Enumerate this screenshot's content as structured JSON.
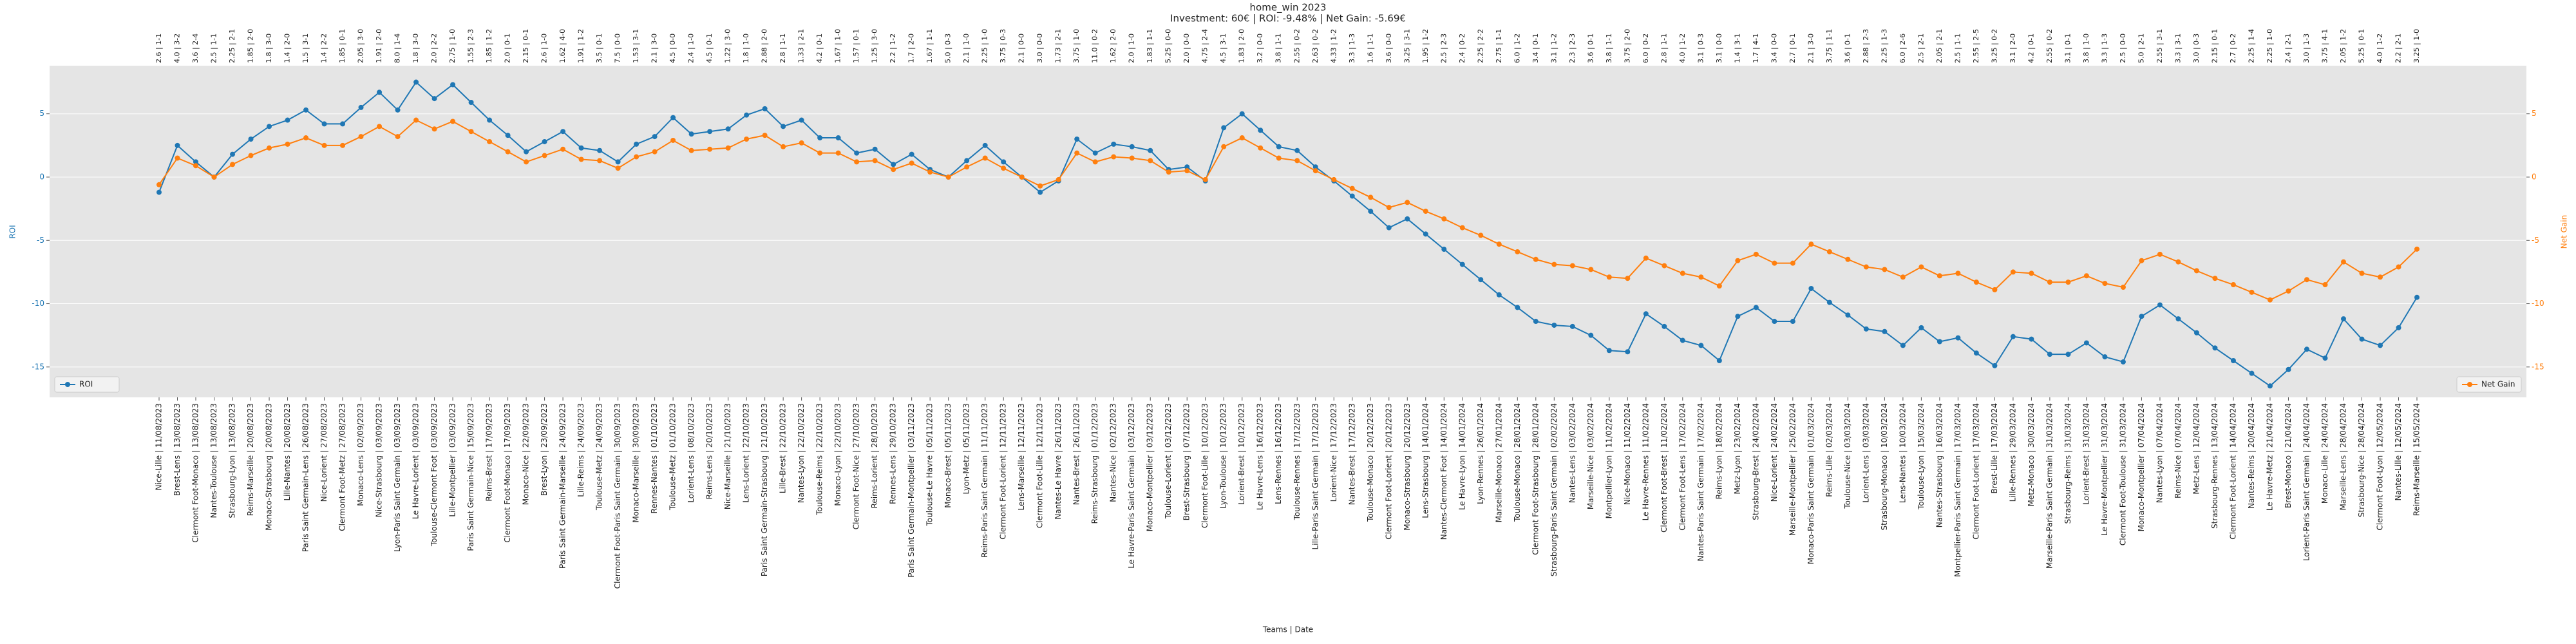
{
  "chart_data": {
    "type": "line",
    "title": "home_win 2023",
    "subtitle": "Investment: 60€ | ROI: -9.48% | Net Gain: -5.69€",
    "xlabel": "Teams | Date",
    "ylabel": "ROI",
    "y2label": "Net Gain",
    "ylim": [
      -17.4,
      8.8
    ],
    "yticks": [
      -15,
      -10,
      -5,
      0,
      5
    ],
    "y2lim": [
      -17.4,
      8.8
    ],
    "y2ticks": [
      -15,
      -10,
      -5,
      0,
      5
    ],
    "grid": true,
    "categories": [
      "Nice-Lille | 11/08/2023",
      "Brest-Lens | 13/08/2023",
      "Clermont Foot-Monaco | 13/08/2023",
      "Nantes-Toulouse | 13/08/2023",
      "Strasbourg-Lyon | 13/08/2023",
      "Reims-Marseille | 20/08/2023",
      "Monaco-Strasbourg | 20/08/2023",
      "Lille-Nantes | 20/08/2023",
      "Paris Saint Germain-Lens | 26/08/2023",
      "Nice-Lorient | 27/08/2023",
      "Clermont Foot-Metz | 27/08/2023",
      "Monaco-Lens | 02/09/2023",
      "Nice-Strasbourg | 03/09/2023",
      "Lyon-Paris Saint Germain | 03/09/2023",
      "Le Havre-Lorient | 03/09/2023",
      "Toulouse-Clermont Foot | 03/09/2023",
      "Lille-Montpellier | 03/09/2023",
      "Paris Saint Germain-Nice | 15/09/2023",
      "Reims-Brest | 17/09/2023",
      "Clermont Foot-Monaco | 17/09/2023",
      "Monaco-Nice | 22/09/2023",
      "Brest-Lyon | 23/09/2023",
      "Paris Saint Germain-Marseille | 24/09/2023",
      "Lille-Reims | 24/09/2023",
      "Toulouse-Metz | 24/09/2023",
      "Clermont Foot-Paris Saint Germain | 30/09/2023",
      "Monaco-Marseille | 30/09/2023",
      "Rennes-Nantes | 01/10/2023",
      "Toulouse-Metz | 01/10/2023",
      "Lorient-Lens | 08/10/2023",
      "Reims-Lens | 20/10/2023",
      "Nice-Marseille | 21/10/2023",
      "Lens-Lorient | 22/10/2023",
      "Paris Saint Germain-Strasbourg | 21/10/2023",
      "Lille-Brest | 22/10/2023",
      "Nantes-Lyon | 22/10/2023",
      "Toulouse-Reims | 22/10/2023",
      "Monaco-Lyon | 22/10/2023",
      "Clermont Foot-Nice | 27/10/2023",
      "Reims-Lorient | 28/10/2023",
      "Rennes-Lens | 29/10/2023",
      "Paris Saint Germain-Montpellier | 03/11/2023",
      "Toulouse-Le Havre | 05/11/2023",
      "Monaco-Brest | 05/11/2023",
      "Lyon-Metz | 05/11/2023",
      "Reims-Paris Saint Germain | 11/11/2023",
      "Clermont Foot-Lorient | 12/11/2023",
      "Lens-Marseille | 12/11/2023",
      "Clermont Foot-Lille | 12/11/2023",
      "Nantes-Le Havre | 26/11/2023",
      "Nantes-Brest | 26/11/2023",
      "Reims-Strasbourg | 01/12/2023",
      "Nantes-Nice | 02/12/2023",
      "Le Havre-Paris Saint Germain | 03/12/2023",
      "Monaco-Montpellier | 03/12/2023",
      "Toulouse-Lorient | 03/12/2023",
      "Brest-Strasbourg | 07/12/2023",
      "Clermont Foot-Lille | 10/12/2023",
      "Lyon-Toulouse | 10/12/2023",
      "Lorient-Brest | 10/12/2023",
      "Le Havre-Lens | 16/12/2023",
      "Lens-Rennes | 16/12/2023",
      "Toulouse-Rennes | 17/12/2023",
      "Lille-Paris Saint Germain | 17/12/2023",
      "Lorient-Nice | 17/12/2023",
      "Nantes-Brest | 17/12/2023",
      "Toulouse-Monaco | 20/12/2023",
      "Clermont Foot-Lorient | 20/12/2023",
      "Monaco-Strasbourg | 20/12/2023",
      "Lens-Strasbourg | 14/01/2024",
      "Nantes-Clermont Foot | 14/01/2024",
      "Le Havre-Lyon | 14/01/2024",
      "Lyon-Rennes | 26/01/2024",
      "Marseille-Monaco | 27/01/2024",
      "Toulouse-Monaco | 28/01/2024",
      "Clermont Foot-Strasbourg | 28/01/2024",
      "Strasbourg-Paris Saint Germain | 02/02/2024",
      "Nantes-Lens | 03/02/2024",
      "Marseille-Nice | 03/02/2024",
      "Montpellier-Lyon | 11/02/2024",
      "Nice-Monaco | 11/02/2024",
      "Le Havre-Rennes | 11/02/2024",
      "Clermont Foot-Brest | 11/02/2024",
      "Clermont Foot-Lens | 17/02/2024",
      "Nantes-Paris Saint Germain | 17/02/2024",
      "Reims-Lyon | 18/02/2024",
      "Metz-Lyon | 23/02/2024",
      "Strasbourg-Brest | 24/02/2024",
      "Nice-Lorient | 24/02/2024",
      "Marseille-Montpellier | 25/02/2024",
      "Monaco-Paris Saint Germain | 01/03/2024",
      "Reims-Lille | 02/03/2024",
      "Toulouse-Nice | 03/03/2024",
      "Lorient-Lens | 03/03/2024",
      "Strasbourg-Monaco | 10/03/2024",
      "Lens-Nantes | 10/03/2024",
      "Toulouse-Lyon | 15/03/2024",
      "Nantes-Strasbourg | 16/03/2024",
      "Montpellier-Paris Saint Germain | 17/03/2024",
      "Clermont Foot-Lorient | 17/03/2024",
      "Brest-Lille | 17/03/2024",
      "Lille-Rennes | 29/03/2024",
      "Metz-Monaco | 30/03/2024",
      "Marseille-Paris Saint Germain | 31/03/2024",
      "Strasbourg-Reims | 31/03/2024",
      "Lorient-Brest | 31/03/2024",
      "Le Havre-Montpellier | 31/03/2024",
      "Clermont Foot-Toulouse | 31/03/2024",
      "Monaco-Montpellier | 07/04/2024",
      "Nantes-Lyon | 07/04/2024",
      "Reims-Nice | 07/04/2024",
      "Metz-Lens | 12/04/2024",
      "Strasbourg-Rennes | 13/04/2024",
      "Clermont Foot-Lorient | 14/04/2024",
      "Nantes-Reims | 20/04/2024",
      "Le Havre-Metz | 21/04/2024",
      "Brest-Monaco | 21/04/2024",
      "Lorient-Paris Saint Germain | 24/04/2024",
      "Monaco-Lille | 24/04/2024",
      "Marseille-Lens | 28/04/2024",
      "Strasbourg-Nice | 28/04/2024",
      "Clermont Foot-Lyon | 12/05/2024",
      "Nantes-Lille | 12/05/2024",
      "Reims-Marseille | 15/05/2024"
    ],
    "point_labels": [
      "2.6 | 1-1",
      "4.0 | 3-2",
      "3.6 | 2-4",
      "2.5 | 1-1",
      "2.25 | 2-1",
      "1.85 | 2-0",
      "1.8 | 3-0",
      "1.4 | 2-0",
      "1.5 | 3-1",
      "1.4 | 2-2",
      "1.85 | 0-1",
      "2.05 | 3-0",
      "1.91 | 2-0",
      "8.0 | 1-4",
      "1.8 | 3-0",
      "2.0 | 2-2",
      "2.75 | 1-0",
      "1.55 | 2-3",
      "1.85 | 1-2",
      "2.0 | 0-1",
      "2.15 | 0-1",
      "2.6 | 1-0",
      "1.62 | 4-0",
      "1.91 | 1-2",
      "3.5 | 0-1",
      "7.5 | 0-0",
      "1.53 | 3-1",
      "2.1 | 3-0",
      "4.5 | 0-0",
      "2.4 | 1-0",
      "4.5 | 0-1",
      "1.22 | 3-0",
      "1.8 | 1-0",
      "2.88 | 2-0",
      "2.8 | 1-1",
      "1.33 | 2-1",
      "4.2 | 0-1",
      "1.67 | 1-0",
      "1.57 | 0-1",
      "1.25 | 3-0",
      "2.2 | 1-2",
      "1.7 | 2-0",
      "1.67 | 1-1",
      "5.0 | 0-3",
      "2.1 | 1-0",
      "2.25 | 1-0",
      "3.75 | 0-3",
      "2.1 | 0-0",
      "3.0 | 0-0",
      "1.73 | 2-1",
      "3.75 | 1-0",
      "11.0 | 0-2",
      "1.62 | 2-0",
      "2.0 | 1-0",
      "1.83 | 1-1",
      "5.25 | 0-0",
      "2.0 | 0-0",
      "4.75 | 2-4",
      "4.5 | 3-1",
      "1.83 | 2-0",
      "3.2 | 0-0",
      "3.8 | 1-1",
      "2.55 | 0-2",
      "2.63 | 0-2",
      "4.33 | 1-2",
      "3.3 | 1-3",
      "1.6 | 1-1",
      "3.6 | 0-0",
      "3.25 | 3-1",
      "1.95 | 1-2",
      "2.5 | 2-3",
      "2.4 | 0-2",
      "2.25 | 2-2",
      "2.75 | 1-1",
      "6.0 | 1-2",
      "3.4 | 0-1",
      "3.1 | 1-2",
      "2.3 | 2-3",
      "3.6 | 0-1",
      "3.8 | 1-1",
      "3.75 | 2-0",
      "6.0 | 0-2",
      "2.8 | 1-1",
      "4.0 | 1-2",
      "3.1 | 0-3",
      "3.1 | 0-0",
      "1.4 | 3-1",
      "1.7 | 4-1",
      "3.4 | 0-0",
      "2.7 | 0-1",
      "2.1 | 3-0",
      "3.75 | 1-1",
      "3.6 | 0-1",
      "2.88 | 2-3",
      "2.25 | 1-3",
      "6.0 | 2-6",
      "2.5 | 2-1",
      "2.05 | 2-1",
      "2.5 | 1-1",
      "2.55 | 2-5",
      "3.25 | 0-2",
      "3.1 | 2-0",
      "4.2 | 0-1",
      "2.55 | 0-2",
      "3.1 | 0-1",
      "3.8 | 1-0",
      "3.3 | 1-3",
      "2.5 | 0-0",
      "5.0 | 2-1",
      "2.55 | 3-1",
      "3.3 | 3-1",
      "3.0 | 0-3",
      "2.15 | 0-1",
      "2.7 | 0-2",
      "2.25 | 1-4",
      "2.25 | 1-0",
      "2.4 | 2-1",
      "3.0 | 1-3",
      "3.75 | 4-1",
      "2.05 | 1-2",
      "5.25 | 0-1",
      "4.0 | 1-2",
      "2.2 | 2-1",
      "3.25 | 1-0"
    ],
    "series": [
      {
        "name": "ROI",
        "color": "#1f77b4",
        "legend": "lower left",
        "values": [
          -1.2,
          2.5,
          1.2,
          0,
          1.8,
          3.0,
          4.0,
          4.5,
          5.3,
          4.2,
          4.2,
          5.5,
          6.7,
          5.3,
          7.5,
          6.2,
          7.3,
          5.9,
          4.5,
          3.3,
          2.0,
          2.8,
          3.6,
          2.3,
          2.1,
          1.2,
          2.6,
          3.2,
          4.7,
          3.4,
          3.6,
          3.8,
          4.9,
          5.4,
          4.0,
          4.5,
          3.1,
          3.1,
          1.9,
          2.2,
          1.0,
          1.8,
          0.6,
          0,
          1.3,
          2.5,
          1.2,
          0,
          -1.2,
          -0.3,
          3.0,
          1.9,
          2.6,
          2.4,
          2.1,
          0.6,
          0.8,
          -0.3,
          3.9,
          5.0,
          3.7,
          2.4,
          2.1,
          0.8,
          -0.3,
          -1.5,
          -2.7,
          -4.0,
          -3.3,
          -4.5,
          -5.7,
          -6.9,
          -8.1,
          -9.3,
          -10.3,
          -11.4,
          -11.7,
          -11.8,
          -12.5,
          -13.7,
          -13.8,
          -10.8,
          -11.8,
          -12.9,
          -13.3,
          -14.5,
          -11.0,
          -10.3,
          -11.4,
          -11.4,
          -8.8,
          -9.9,
          -10.9,
          -12.0,
          -12.2,
          -13.3,
          -11.9,
          -13.0,
          -12.7,
          -13.9,
          -14.9,
          -12.6,
          -12.8,
          -14.0,
          -14.0,
          -13.1,
          -14.2,
          -14.6,
          -11.0,
          -10.1,
          -11.2,
          -12.3,
          -13.5,
          -14.5,
          -15.5,
          -16.5,
          -15.2,
          -13.6,
          -14.3,
          -11.2,
          -12.8,
          -13.3,
          -11.9,
          -9.5
        ]
      },
      {
        "name": "Net Gain",
        "color": "#ff7f0e",
        "axis": "y2",
        "legend": "lower right",
        "values": [
          -0.6,
          1.5,
          0.9,
          0,
          1.0,
          1.7,
          2.3,
          2.6,
          3.1,
          2.5,
          2.5,
          3.2,
          4.0,
          3.2,
          4.5,
          3.8,
          4.4,
          3.6,
          2.8,
          2.0,
          1.2,
          1.7,
          2.2,
          1.4,
          1.3,
          0.7,
          1.6,
          2.0,
          2.9,
          2.1,
          2.2,
          2.3,
          3.0,
          3.3,
          2.4,
          2.7,
          1.9,
          1.9,
          1.2,
          1.3,
          0.6,
          1.1,
          0.4,
          0,
          0.8,
          1.5,
          0.7,
          0,
          -0.7,
          -0.2,
          1.9,
          1.2,
          1.6,
          1.5,
          1.3,
          0.4,
          0.5,
          -0.2,
          2.4,
          3.1,
          2.3,
          1.5,
          1.3,
          0.5,
          -0.2,
          -0.9,
          -1.6,
          -2.4,
          -2.0,
          -2.7,
          -3.3,
          -4.0,
          -4.6,
          -5.3,
          -5.9,
          -6.5,
          -6.9,
          -7.0,
          -7.3,
          -7.9,
          -8.0,
          -6.4,
          -7.0,
          -7.6,
          -7.9,
          -8.6,
          -6.6,
          -6.1,
          -6.8,
          -6.8,
          -5.3,
          -5.9,
          -6.5,
          -7.1,
          -7.3,
          -7.9,
          -7.1,
          -7.8,
          -7.6,
          -8.3,
          -8.9,
          -7.5,
          -7.6,
          -8.3,
          -8.3,
          -7.8,
          -8.4,
          -8.7,
          -6.6,
          -6.1,
          -6.7,
          -7.4,
          -8.0,
          -8.5,
          -9.1,
          -9.7,
          -9.0,
          -8.1,
          -8.5,
          -6.7,
          -7.6,
          -7.9,
          -7.1,
          -5.69
        ]
      }
    ]
  }
}
